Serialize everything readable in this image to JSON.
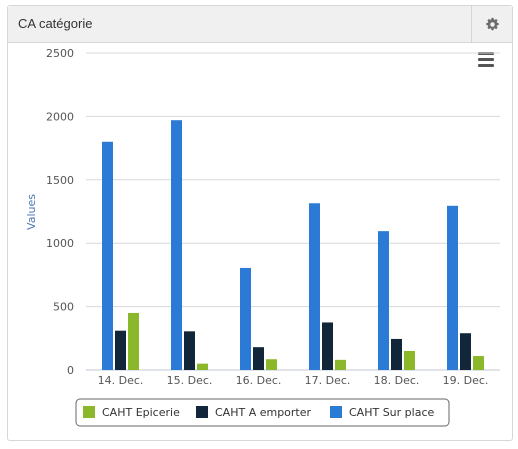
{
  "panel": {
    "title": "CA catégorie"
  },
  "colors": {
    "epicerie": "#8ab82a",
    "emporter": "#12263a",
    "surplace": "#2b7ad6"
  },
  "icons": {
    "settings": "gear-icon",
    "menu": "hamburger-menu-icon"
  },
  "chart_data": {
    "type": "bar",
    "title": "",
    "xlabel": "",
    "ylabel": "Values",
    "ylim": [
      0,
      2500
    ],
    "yticks": [
      "0",
      "500",
      "1000",
      "1500",
      "2000",
      "2500"
    ],
    "categories": [
      "14. Dec.",
      "15. Dec.",
      "16. Dec.",
      "17. Dec.",
      "18. Dec.",
      "19. Dec."
    ],
    "series": [
      {
        "name": "CAHT Sur place",
        "color": "#2b7ad6",
        "values": [
          1800,
          1970,
          805,
          1315,
          1095,
          1295
        ]
      },
      {
        "name": "CAHT A emporter",
        "color": "#12263a",
        "values": [
          310,
          305,
          180,
          375,
          245,
          290
        ]
      },
      {
        "name": "CAHT Epicerie",
        "color": "#8ab82a",
        "values": [
          450,
          50,
          85,
          80,
          150,
          110
        ]
      }
    ],
    "legend": {
      "placement": "bottom-center",
      "items": [
        "CAHT Epicerie",
        "CAHT A emporter",
        "CAHT Sur place"
      ]
    },
    "grid": true
  }
}
